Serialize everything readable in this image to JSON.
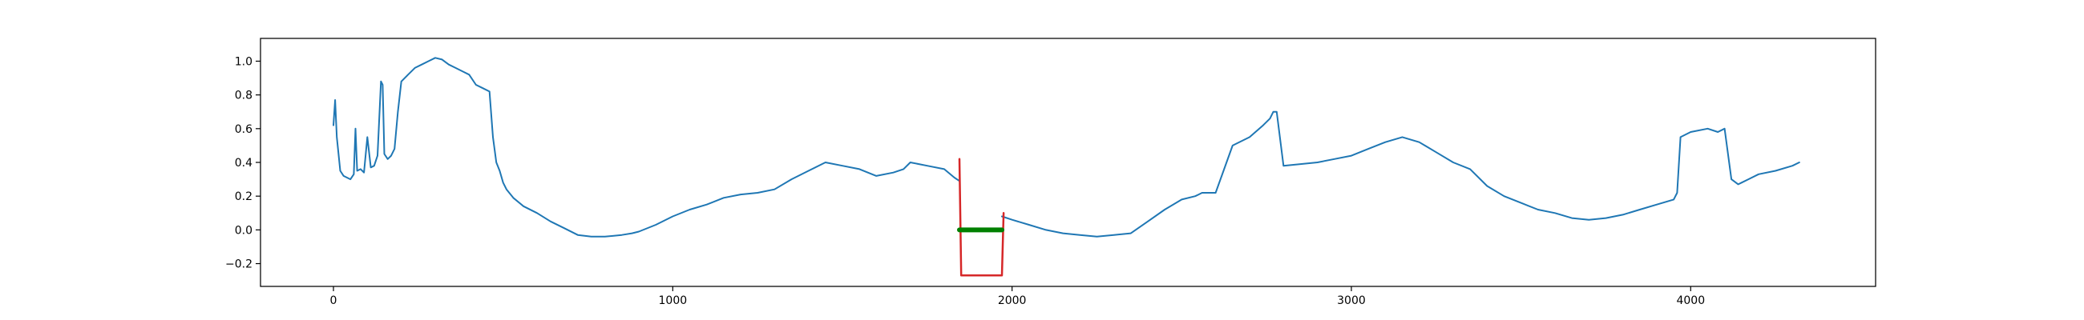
{
  "chart_data": {
    "type": "line",
    "title": "",
    "xlabel": "",
    "ylabel": "",
    "xlim": [
      -215,
      4545
    ],
    "ylim": [
      -0.335,
      1.135
    ],
    "grid": false,
    "x_ticks": [
      0,
      1000,
      2000,
      3000,
      4000
    ],
    "x_tick_labels": [
      "0",
      "1000",
      "2000",
      "3000",
      "4000"
    ],
    "y_ticks": [
      -0.2,
      0.0,
      0.2,
      0.4,
      0.6,
      0.8,
      1.0
    ],
    "y_tick_labels": [
      "−0.2",
      "0.0",
      "0.2",
      "0.4",
      "0.6",
      "0.8",
      "1.0"
    ],
    "series": [
      {
        "color": "#1f77b4",
        "x": [
          0,
          5,
          10,
          20,
          30,
          40,
          50,
          60,
          65,
          70,
          80,
          90,
          100,
          110,
          120,
          130,
          140,
          145,
          150,
          160,
          170,
          180,
          190,
          200,
          220,
          240,
          260,
          280,
          300,
          320,
          340,
          360,
          380,
          400,
          420,
          440,
          460,
          470,
          480,
          490,
          500,
          510,
          530,
          560,
          600,
          640,
          680,
          720,
          760,
          800,
          850,
          880,
          900,
          950,
          1000,
          1050,
          1100,
          1150,
          1200,
          1250,
          1300,
          1350,
          1400,
          1450,
          1500,
          1550,
          1600,
          1650,
          1680,
          1700,
          1750,
          1800,
          1830,
          1845
        ],
        "y": [
          0.62,
          0.77,
          0.55,
          0.35,
          0.32,
          0.31,
          0.3,
          0.33,
          0.6,
          0.35,
          0.36,
          0.34,
          0.55,
          0.37,
          0.38,
          0.44,
          0.88,
          0.86,
          0.45,
          0.42,
          0.44,
          0.48,
          0.7,
          0.88,
          0.92,
          0.96,
          0.98,
          1.0,
          1.02,
          1.01,
          0.98,
          0.96,
          0.94,
          0.92,
          0.86,
          0.84,
          0.82,
          0.55,
          0.4,
          0.35,
          0.28,
          0.24,
          0.19,
          0.14,
          0.1,
          0.05,
          0.01,
          -0.03,
          -0.04,
          -0.04,
          -0.03,
          -0.02,
          -0.01,
          0.03,
          0.08,
          0.12,
          0.15,
          0.19,
          0.21,
          0.22,
          0.24,
          0.3,
          0.35,
          0.4,
          0.38,
          0.36,
          0.32,
          0.34,
          0.36,
          0.4,
          0.38,
          0.36,
          0.31,
          0.29
        ]
      },
      {
        "color": "#1f77b4",
        "x": [
          1970,
          2000,
          2050,
          2100,
          2150,
          2200,
          2250,
          2300,
          2350,
          2400,
          2450,
          2500,
          2540,
          2550,
          2560,
          2580,
          2600,
          2650,
          2700,
          2740,
          2760,
          2770,
          2780,
          2800,
          2850,
          2900,
          2950,
          3000,
          3050,
          3100,
          3150,
          3200,
          3250,
          3300,
          3350,
          3400,
          3450,
          3500,
          3550,
          3600,
          3650,
          3700,
          3750,
          3800,
          3850,
          3900,
          3950,
          3960,
          3970,
          4000,
          4050,
          4080,
          4100,
          4120,
          4140,
          4150,
          4170,
          4200,
          4250,
          4300,
          4320
        ],
        "y": [
          0.08,
          0.06,
          0.03,
          0.0,
          -0.02,
          -0.03,
          -0.04,
          -0.03,
          -0.02,
          0.05,
          0.12,
          0.18,
          0.2,
          0.21,
          0.22,
          0.22,
          0.22,
          0.5,
          0.55,
          0.62,
          0.66,
          0.7,
          0.7,
          0.38,
          0.39,
          0.4,
          0.42,
          0.44,
          0.48,
          0.52,
          0.55,
          0.52,
          0.46,
          0.4,
          0.36,
          0.26,
          0.2,
          0.16,
          0.12,
          0.1,
          0.07,
          0.06,
          0.07,
          0.09,
          0.12,
          0.15,
          0.18,
          0.22,
          0.55,
          0.58,
          0.6,
          0.58,
          0.6,
          0.3,
          0.27,
          0.28,
          0.3,
          0.33,
          0.35,
          0.38,
          0.4
        ]
      },
      {
        "color": "#d62728",
        "x": [
          1845,
          1850,
          1970,
          1975
        ],
        "y": [
          0.42,
          -0.27,
          -0.27,
          0.1
        ]
      },
      {
        "color": "#008000",
        "x": [
          1845,
          1970
        ],
        "y": [
          0.0,
          0.0
        ]
      }
    ]
  }
}
